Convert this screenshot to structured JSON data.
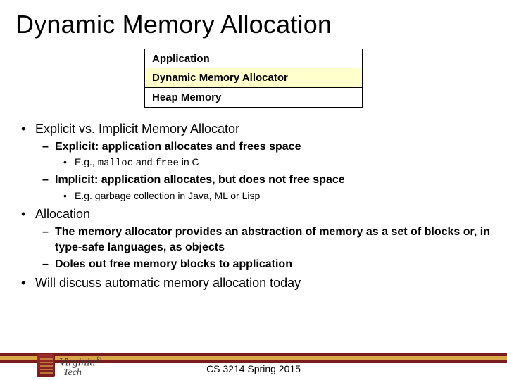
{
  "title": "Dynamic Memory Allocation",
  "stack": {
    "rows": [
      {
        "label": "Application",
        "highlight": false
      },
      {
        "label": "Dynamic Memory Allocator",
        "highlight": true
      },
      {
        "label": "Heap Memory",
        "highlight": false
      }
    ]
  },
  "bullets": {
    "b1": "Explicit vs. Implicit Memory Allocator",
    "b1_1": "Explicit:  application allocates and frees space",
    "b1_1_1_pre": "E.g., ",
    "b1_1_1_code1": "malloc",
    "b1_1_1_mid": " and ",
    "b1_1_1_code2": "free",
    "b1_1_1_post": " in C",
    "b1_2": "Implicit: application allocates, but does not free space",
    "b1_2_1": "E.g. garbage collection in Java, ML or Lisp",
    "b2": "Allocation",
    "b2_1": "The memory allocator provides an abstraction of memory as a set of blocks or, in type-safe languages, as objects",
    "b2_2": "Doles out free memory blocks to application",
    "b3": "Will discuss automatic memory allocation today"
  },
  "footer": {
    "course": "CS 3214 Spring 2015",
    "bar_colors": [
      "#7a1c1c",
      "#d9a64a",
      "#7a1c1c"
    ]
  },
  "logo": {
    "line1": "Virginia",
    "line2": "Tech",
    "reg": "®"
  }
}
